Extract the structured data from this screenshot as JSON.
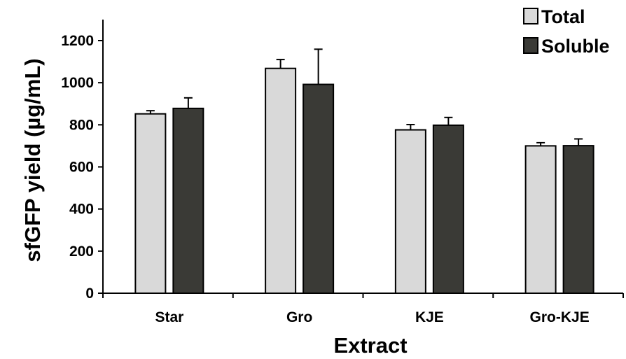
{
  "chart_data": {
    "type": "bar",
    "title": "",
    "xlabel": "Extract",
    "ylabel": "sfGFP yield (µg/mL)",
    "categories": [
      "Star",
      "Gro",
      "KJE",
      "Gro-KJE"
    ],
    "series": [
      {
        "name": "Total",
        "color": "#d9d9d9",
        "values": [
          852,
          1068,
          776,
          700
        ],
        "errors": [
          15,
          42,
          25,
          15
        ]
      },
      {
        "name": "Soluble",
        "color": "#3a3a36",
        "values": [
          878,
          992,
          798,
          701
        ],
        "errors": [
          50,
          167,
          37,
          32
        ]
      }
    ],
    "ylim": [
      0,
      1200
    ],
    "yticks": [
      0,
      200,
      400,
      600,
      800,
      1000,
      1200
    ],
    "grid": false,
    "legend": {
      "position": "top-right"
    }
  }
}
